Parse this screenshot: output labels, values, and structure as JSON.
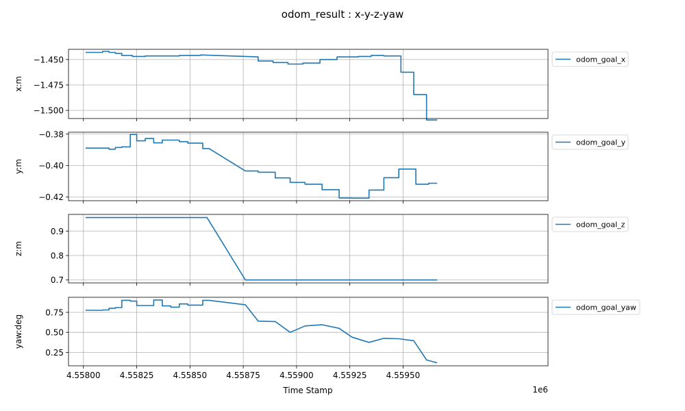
{
  "title": "odom_result : x-y-z-yaw",
  "colors": {
    "line": "#1f77b4",
    "grid": "#b0b0b0",
    "frame": "#000000"
  },
  "x_axis": {
    "label": "Time Stamp",
    "offset_text": "1e6",
    "ticks": [
      4.558,
      4.55825,
      4.5585,
      4.55875,
      4.559,
      4.55925,
      4.5595
    ],
    "tick_labels": [
      "4.55800",
      "4.55825",
      "4.55850",
      "4.55875",
      "4.55900",
      "4.55925",
      "4.55950"
    ],
    "xlim": [
      4.55793,
      4.56018
    ]
  },
  "chart_data": [
    {
      "type": "line",
      "ylabel": "x:m",
      "ylim": [
        -1.508,
        -1.44
      ],
      "yticks": [
        -1.45,
        -1.475,
        -1.5
      ],
      "ytick_labels": [
        "−1.450",
        "−1.475",
        "−1.500"
      ],
      "grid": true,
      "legend": "right-top",
      "series": [
        {
          "name": "odom_goal_x",
          "x": [
            4.55801,
            4.55809,
            4.55809,
            4.55812,
            4.55812,
            4.55815,
            4.55815,
            4.55818,
            4.55818,
            4.55823,
            4.55823,
            4.55829,
            4.55829,
            4.55845,
            4.55845,
            4.55855,
            4.55855,
            4.55882,
            4.55882,
            4.55889,
            4.55889,
            4.55896,
            4.55896,
            4.55903,
            4.55903,
            4.55911,
            4.55911,
            4.55919,
            4.55919,
            4.55929,
            4.55929,
            4.55935,
            4.55935,
            4.55941,
            4.55941,
            4.55949,
            4.55949,
            4.55955,
            4.55955,
            4.55961,
            4.55961,
            4.55966
          ],
          "y": [
            -1.443,
            -1.443,
            -1.442,
            -1.442,
            -1.443,
            -1.443,
            -1.444,
            -1.444,
            -1.446,
            -1.446,
            -1.447,
            -1.447,
            -1.4465,
            -1.4465,
            -1.446,
            -1.446,
            -1.4455,
            -1.4475,
            -1.4515,
            -1.4515,
            -1.453,
            -1.453,
            -1.4545,
            -1.4545,
            -1.4535,
            -1.4535,
            -1.45,
            -1.45,
            -1.4475,
            -1.4475,
            -1.447,
            -1.447,
            -1.446,
            -1.446,
            -1.4465,
            -1.4465,
            -1.4625,
            -1.4625,
            -1.4845,
            -1.4845,
            -1.5095,
            -1.5095
          ]
        }
      ]
    },
    {
      "type": "line",
      "ylabel": "y:m",
      "ylim": [
        -0.4223,
        -0.3788
      ],
      "yticks": [
        -0.38,
        -0.4,
        -0.42
      ],
      "ytick_labels": [
        "−0.38",
        "−0.40",
        "−0.42"
      ],
      "grid": true,
      "legend": "right-top",
      "series": [
        {
          "name": "odom_goal_y",
          "x": [
            4.55801,
            4.55809,
            4.55809,
            4.55812,
            4.55812,
            4.55815,
            4.55815,
            4.55818,
            4.55818,
            4.55822,
            4.55822,
            4.55825,
            4.55825,
            4.55829,
            4.55829,
            4.55833,
            4.55833,
            4.55837,
            4.55837,
            4.55845,
            4.55845,
            4.55849,
            4.55849,
            4.55856,
            4.55856,
            4.55859,
            4.55876,
            4.55882,
            4.55882,
            4.5589,
            4.5589,
            4.55897,
            4.55897,
            4.55904,
            4.55904,
            4.55912,
            4.55912,
            4.5592,
            4.5592,
            4.55926,
            4.55926,
            4.55934,
            4.55934,
            4.55941,
            4.55941,
            4.55948,
            4.55948,
            4.55956,
            4.55956,
            4.55962,
            4.55962,
            4.55966
          ],
          "y": [
            -0.3889,
            -0.3889,
            -0.3889,
            -0.3889,
            -0.3896,
            -0.3896,
            -0.3885,
            -0.3885,
            -0.3881,
            -0.3881,
            -0.3802,
            -0.3802,
            -0.3843,
            -0.3843,
            -0.3828,
            -0.3828,
            -0.3856,
            -0.3856,
            -0.3838,
            -0.3838,
            -0.3848,
            -0.3848,
            -0.3857,
            -0.3857,
            -0.3892,
            -0.3892,
            -0.4034,
            -0.4034,
            -0.4042,
            -0.4042,
            -0.4078,
            -0.4078,
            -0.4107,
            -0.4107,
            -0.4118,
            -0.4118,
            -0.4153,
            -0.4153,
            -0.4206,
            -0.4206,
            -0.4207,
            -0.4207,
            -0.4155,
            -0.4155,
            -0.4077,
            -0.4077,
            -0.4022,
            -0.4022,
            -0.4118,
            -0.4118,
            -0.4112,
            -0.4112
          ]
        }
      ]
    },
    {
      "type": "line",
      "ylabel": "z:m",
      "ylim": [
        0.688,
        0.968
      ],
      "yticks": [
        0.9,
        0.8,
        0.7
      ],
      "ytick_labels": [
        "0.9",
        "0.8",
        "0.7"
      ],
      "grid": true,
      "legend": "right-top",
      "series": [
        {
          "name": "odom_goal_z",
          "x": [
            4.55801,
            4.55858,
            4.55876,
            4.55966
          ],
          "y": [
            0.955,
            0.955,
            0.7,
            0.7
          ]
        }
      ]
    },
    {
      "type": "line",
      "ylabel": "yaw:deg",
      "ylim": [
        0.082,
        0.938
      ],
      "yticks": [
        0.75,
        0.5,
        0.25
      ],
      "ytick_labels": [
        "0.75",
        "0.50",
        "0.25"
      ],
      "grid": true,
      "legend": "right-top",
      "series": [
        {
          "name": "odom_goal_yaw",
          "x": [
            4.55801,
            4.55809,
            4.55809,
            4.55812,
            4.55812,
            4.55815,
            4.55815,
            4.55818,
            4.55818,
            4.55822,
            4.55822,
            4.55825,
            4.55825,
            4.55833,
            4.55833,
            4.55837,
            4.55837,
            4.55841,
            4.55841,
            4.55845,
            4.55845,
            4.55849,
            4.55849,
            4.55856,
            4.55856,
            4.55859,
            4.55876,
            4.55882,
            4.55882,
            4.5589,
            4.5589,
            4.55897,
            4.55897,
            4.55904,
            4.55904,
            4.55912,
            4.55912,
            4.5592,
            4.5592,
            4.55926,
            4.55926,
            4.55934,
            4.55934,
            4.55941,
            4.55941,
            4.55948,
            4.55948,
            4.55955,
            4.55955,
            4.55961,
            4.55961,
            4.55966
          ],
          "y": [
            0.775,
            0.775,
            0.78,
            0.78,
            0.8,
            0.8,
            0.81,
            0.81,
            0.9,
            0.9,
            0.89,
            0.89,
            0.835,
            0.835,
            0.905,
            0.905,
            0.83,
            0.83,
            0.815,
            0.815,
            0.855,
            0.855,
            0.84,
            0.84,
            0.9,
            0.9,
            0.845,
            0.64,
            0.64,
            0.635,
            0.635,
            0.5,
            0.5,
            0.58,
            0.58,
            0.595,
            0.595,
            0.55,
            0.55,
            0.44,
            0.44,
            0.375,
            0.375,
            0.425,
            0.425,
            0.42,
            0.42,
            0.395,
            0.395,
            0.155,
            0.155,
            0.12
          ]
        }
      ]
    }
  ]
}
